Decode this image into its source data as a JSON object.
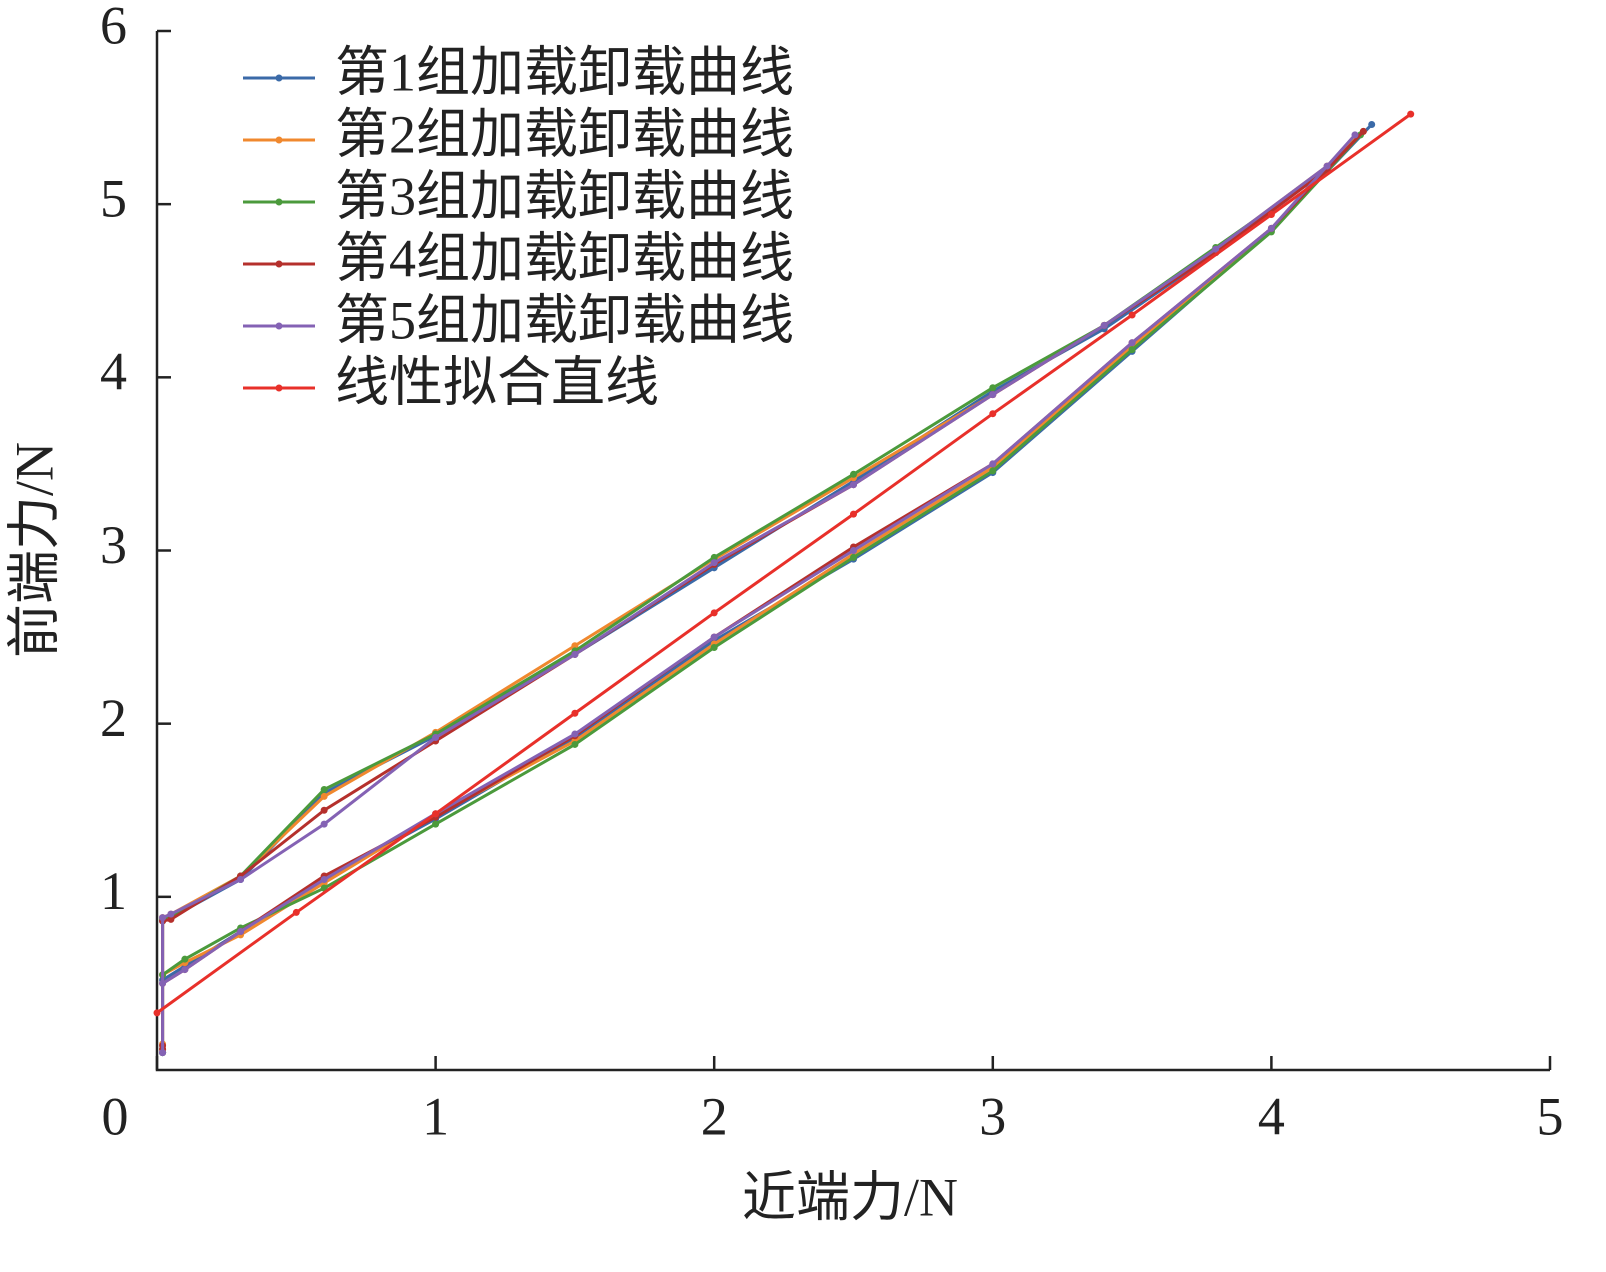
{
  "chart_data": {
    "type": "line",
    "x_label": "近端力/N",
    "y_label": "前端力/N",
    "xlim": [
      0,
      5
    ],
    "xticks": [
      0,
      1,
      2,
      3,
      4,
      5
    ],
    "ylim": [
      0,
      6
    ],
    "yticks": [
      1,
      2,
      3,
      4,
      5,
      6
    ],
    "legend": "upper left",
    "markers": true,
    "series": [
      {
        "name": "第1组加载卸载曲线",
        "color": "#3b6aa8",
        "x": [
          0.02,
          0.02,
          0.1,
          0.3,
          0.6,
          1.0,
          1.5,
          2.0,
          2.5,
          3.0,
          3.5,
          4.0,
          4.36,
          4.2,
          3.8,
          3.4,
          3.0,
          2.5,
          2.0,
          1.5,
          1.0,
          0.6,
          0.3,
          0.05,
          0.02,
          0.02
        ],
        "values": [
          0.1,
          0.52,
          0.6,
          0.8,
          1.1,
          1.45,
          1.92,
          2.48,
          2.95,
          3.45,
          4.15,
          4.85,
          5.46,
          5.2,
          4.72,
          4.28,
          3.92,
          3.4,
          2.9,
          2.4,
          1.93,
          1.6,
          1.1,
          0.88,
          0.86,
          0.12
        ]
      },
      {
        "name": "第2组加载卸载曲线",
        "color": "#f0882e",
        "x": [
          0.02,
          0.02,
          0.1,
          0.3,
          0.6,
          1.0,
          1.5,
          2.0,
          2.5,
          3.0,
          3.5,
          4.0,
          4.33,
          4.2,
          3.8,
          3.4,
          3.0,
          2.5,
          2.0,
          1.5,
          1.0,
          0.6,
          0.3,
          0.05,
          0.02,
          0.02
        ],
        "values": [
          0.12,
          0.55,
          0.62,
          0.78,
          1.08,
          1.47,
          1.9,
          2.46,
          2.98,
          3.48,
          4.18,
          4.86,
          5.42,
          5.22,
          4.74,
          4.3,
          3.9,
          3.42,
          2.95,
          2.45,
          1.95,
          1.58,
          1.12,
          0.9,
          0.88,
          0.15
        ]
      },
      {
        "name": "第3组加载卸载曲线",
        "color": "#4b9a3c",
        "x": [
          0.02,
          0.02,
          0.1,
          0.3,
          0.6,
          1.0,
          1.5,
          2.0,
          2.5,
          3.0,
          3.5,
          4.0,
          4.32,
          4.2,
          3.8,
          3.4,
          3.0,
          2.5,
          2.0,
          1.5,
          1.0,
          0.6,
          0.3,
          0.05,
          0.02,
          0.02
        ],
        "values": [
          0.1,
          0.55,
          0.64,
          0.82,
          1.05,
          1.42,
          1.88,
          2.44,
          2.96,
          3.46,
          4.16,
          4.84,
          5.4,
          5.2,
          4.75,
          4.3,
          3.94,
          3.44,
          2.96,
          2.42,
          1.94,
          1.62,
          1.12,
          0.88,
          0.87,
          0.1
        ]
      },
      {
        "name": "第4组加载卸载曲线",
        "color": "#b5302c",
        "x": [
          0.02,
          0.02,
          0.1,
          0.3,
          0.6,
          1.0,
          1.5,
          2.0,
          2.5,
          3.0,
          3.5,
          4.0,
          4.33,
          4.2,
          3.8,
          3.4,
          3.0,
          2.5,
          2.0,
          1.5,
          1.0,
          0.6,
          0.3,
          0.05,
          0.02,
          0.02
        ],
        "values": [
          0.14,
          0.5,
          0.58,
          0.8,
          1.12,
          1.46,
          1.93,
          2.5,
          3.02,
          3.5,
          4.2,
          4.86,
          5.42,
          5.2,
          4.72,
          4.3,
          3.9,
          3.38,
          2.92,
          2.4,
          1.9,
          1.5,
          1.12,
          0.87,
          0.86,
          0.12
        ]
      },
      {
        "name": "第5组加载卸载曲线",
        "color": "#8462b4",
        "x": [
          0.02,
          0.02,
          0.1,
          0.3,
          0.6,
          1.0,
          1.5,
          2.0,
          2.5,
          3.0,
          3.5,
          4.0,
          4.3,
          4.2,
          3.8,
          3.4,
          3.0,
          2.5,
          2.0,
          1.5,
          1.0,
          0.6,
          0.3,
          0.05,
          0.02,
          0.02
        ],
        "values": [
          0.1,
          0.5,
          0.58,
          0.8,
          1.1,
          1.48,
          1.94,
          2.5,
          3.0,
          3.5,
          4.2,
          4.86,
          5.4,
          5.22,
          4.74,
          4.3,
          3.9,
          3.38,
          2.93,
          2.4,
          1.92,
          1.42,
          1.1,
          0.9,
          0.88,
          0.1
        ]
      },
      {
        "name": "线性拟合直线",
        "color": "#e8302a",
        "x": [
          0,
          0.5,
          1,
          1.5,
          2,
          2.5,
          3,
          3.5,
          4,
          4.5
        ],
        "values": [
          0.33,
          0.91,
          1.48,
          2.06,
          2.64,
          3.21,
          3.79,
          4.36,
          4.94,
          5.52
        ]
      }
    ]
  }
}
